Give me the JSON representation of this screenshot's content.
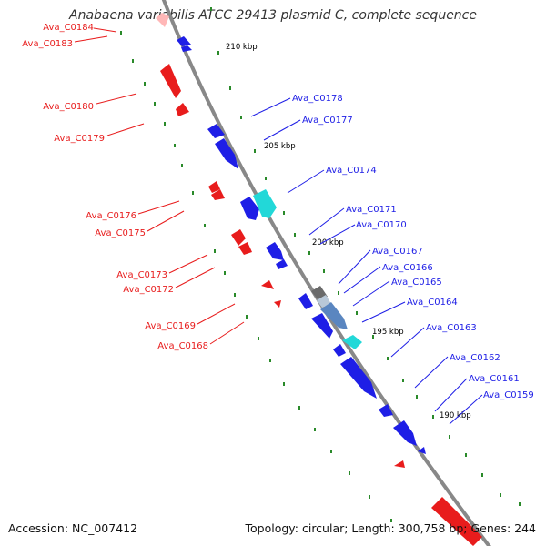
{
  "title": "Anabaena variabilis ATCC 29413 plasmid C, complete sequence",
  "footer": {
    "accession": "Accession: NC_007412",
    "summary": "Topology: circular; Length: 300,758 bp; Genes: 244"
  },
  "colors": {
    "forward": "#1e1ee6",
    "reverse": "#e81c1c",
    "backbone": "#888888",
    "tick": "#2a8a2a",
    "cyan": "#22d8d8",
    "gray": "#8a8a8a"
  },
  "scale_labels": [
    "210 kbp",
    "205 kbp",
    "200 kbp",
    "195 kbp",
    "190 kbp"
  ],
  "reverse_labels": [
    "Ava_C0184",
    "Ava_C0183",
    "Ava_C0180",
    "Ava_C0179",
    "Ava_C0176",
    "Ava_C0175",
    "Ava_C0173",
    "Ava_C0172",
    "Ava_C0169",
    "Ava_C0168"
  ],
  "forward_labels": [
    "Ava_C0178",
    "Ava_C0177",
    "Ava_C0174",
    "Ava_C0171",
    "Ava_C0170",
    "Ava_C0167",
    "Ava_C0166",
    "Ava_C0165",
    "Ava_C0164",
    "Ava_C0163",
    "Ava_C0162",
    "Ava_C0161",
    "Ava_C0159"
  ]
}
